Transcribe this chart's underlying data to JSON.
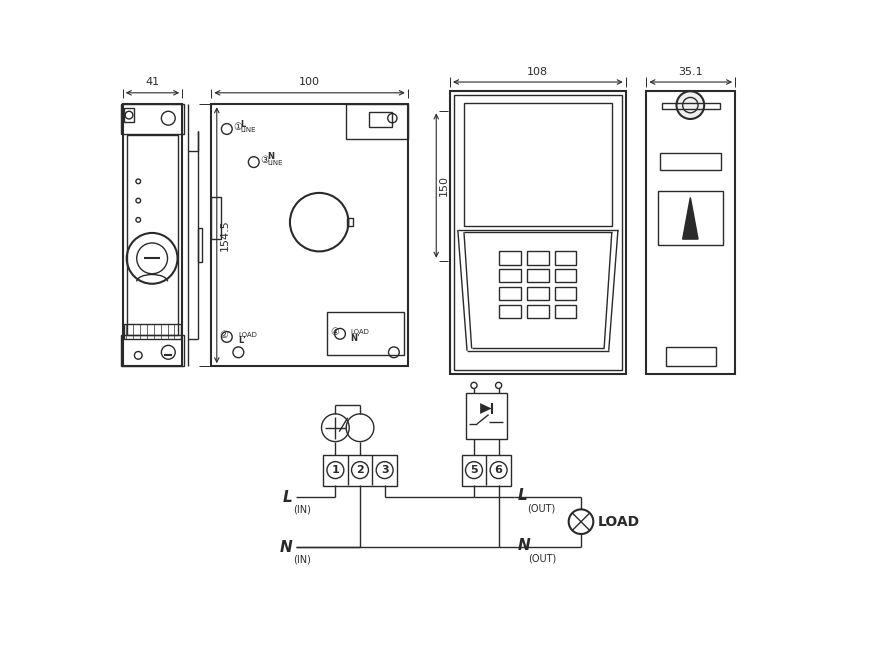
{
  "bg_color": "#ffffff",
  "lc": "#2a2a2a",
  "dim_41": "41",
  "dim_100": "100",
  "dim_108": "108",
  "dim_35_1": "35.1",
  "dim_154_5": "154.5",
  "dim_150": "150"
}
